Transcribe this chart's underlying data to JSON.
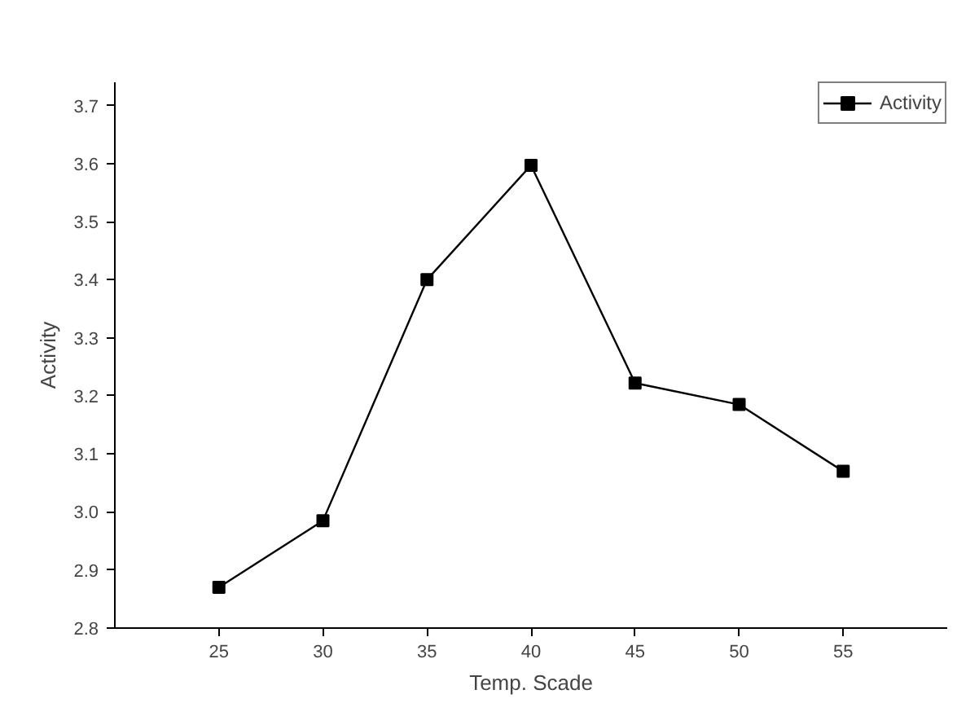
{
  "chart_data": {
    "type": "line",
    "xlabel": "Temp. Scade",
    "ylabel": "Activity",
    "x": [
      25,
      30,
      35,
      40,
      45,
      50,
      55
    ],
    "series": [
      {
        "name": "Activity",
        "color": "#000000",
        "values": [
          2.87,
          2.985,
          3.4,
          3.597,
          3.222,
          3.185,
          3.07
        ]
      }
    ],
    "xlim": [
      20,
      60
    ],
    "xticks": [
      25,
      30,
      35,
      40,
      45,
      50,
      55
    ],
    "ylim": [
      2.8,
      3.74
    ],
    "yticks": [
      2.8,
      2.9,
      {
        "value": 3,
        "label": "3.0"
      },
      3.1,
      3.2,
      3.3,
      3.4,
      3.5,
      3.6,
      3.7
    ],
    "marker": "square",
    "line_style": "solid",
    "grid": false,
    "legend": "top right"
  }
}
